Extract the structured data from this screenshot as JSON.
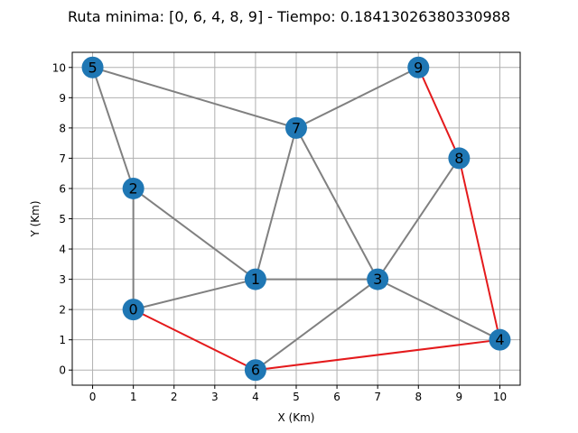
{
  "chart_data": {
    "type": "network-graph",
    "title": "Ruta minima: [0, 6, 4, 8, 9] - Tiempo: 0.18413026380330988",
    "xlabel": "X (Km)",
    "ylabel": "Y (Km)",
    "xlim": [
      -0.5,
      10.5
    ],
    "ylim": [
      -0.5,
      10.5
    ],
    "x_ticks": [
      0,
      1,
      2,
      3,
      4,
      5,
      6,
      7,
      8,
      9,
      10
    ],
    "y_ticks": [
      0,
      1,
      2,
      3,
      4,
      5,
      6,
      7,
      8,
      9,
      10
    ],
    "grid": true,
    "nodes": [
      {
        "id": "0",
        "x": 1,
        "y": 2
      },
      {
        "id": "1",
        "x": 4,
        "y": 3
      },
      {
        "id": "2",
        "x": 1,
        "y": 6
      },
      {
        "id": "3",
        "x": 7,
        "y": 3
      },
      {
        "id": "4",
        "x": 10,
        "y": 1
      },
      {
        "id": "5",
        "x": 0,
        "y": 10
      },
      {
        "id": "6",
        "x": 4,
        "y": 0
      },
      {
        "id": "7",
        "x": 5,
        "y": 8
      },
      {
        "id": "8",
        "x": 9,
        "y": 7
      },
      {
        "id": "9",
        "x": 8,
        "y": 10
      }
    ],
    "edges": [
      [
        "5",
        "7"
      ],
      [
        "5",
        "2"
      ],
      [
        "2",
        "0"
      ],
      [
        "2",
        "1"
      ],
      [
        "0",
        "1"
      ],
      [
        "1",
        "7"
      ],
      [
        "1",
        "3"
      ],
      [
        "7",
        "9"
      ],
      [
        "7",
        "3"
      ],
      [
        "3",
        "8"
      ],
      [
        "3",
        "4"
      ],
      [
        "3",
        "6"
      ],
      [
        "0",
        "6"
      ],
      [
        "6",
        "4"
      ],
      [
        "4",
        "8"
      ],
      [
        "8",
        "9"
      ]
    ],
    "route": [
      "0",
      "6",
      "4",
      "8",
      "9"
    ],
    "colors": {
      "node": "#1f77b4",
      "edge": "#808080",
      "route_edge": "#e41a1c",
      "grid": "#b0b0b0",
      "text": "#000000"
    }
  }
}
